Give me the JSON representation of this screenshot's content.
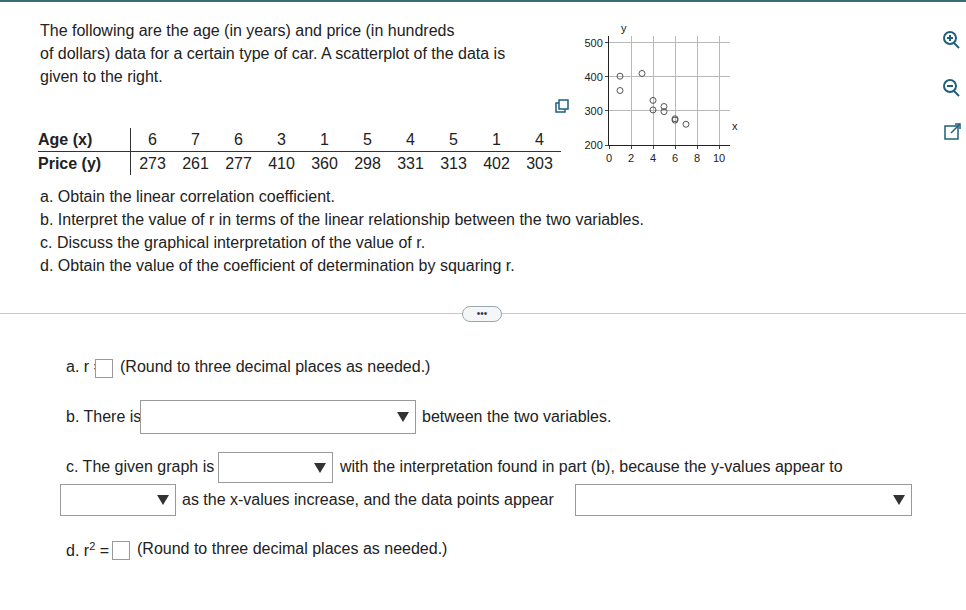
{
  "intro": [
    "The following are the age (in years) and price (in hundreds",
    "of dollars) data for a certain type of car. A scatterplot of the data is",
    "given to the right."
  ],
  "table": {
    "rows": [
      {
        "label": "Age (x)",
        "values": [
          6,
          7,
          6,
          3,
          1,
          5,
          4,
          5,
          1,
          4
        ]
      },
      {
        "label": "Price (y)",
        "values": [
          273,
          261,
          277,
          410,
          360,
          298,
          331,
          313,
          402,
          303
        ]
      }
    ]
  },
  "chart_data": {
    "type": "scatter",
    "x_label": "x",
    "y_label": "y",
    "x": [
      6,
      7,
      6,
      3,
      1,
      5,
      4,
      5,
      1,
      4
    ],
    "values": [
      273,
      261,
      277,
      410,
      360,
      298,
      331,
      313,
      402,
      303
    ],
    "xlim": [
      0,
      11
    ],
    "ylim": [
      200,
      520
    ],
    "xticks": [
      0,
      2,
      4,
      6,
      8,
      10
    ],
    "yticks": [
      200,
      300,
      400,
      500
    ],
    "grid": true,
    "marker": "circle-open",
    "color": "#555555"
  },
  "questions": [
    "a. Obtain the linear correlation coefficient.",
    "b. Interpret the value of r in terms of the linear relationship between the two variables.",
    "c. Discuss the graphical interpretation of the value of r.",
    "d. Obtain the value of the coefficient of determination by squaring r."
  ],
  "more_button": "•••",
  "answers": {
    "a": {
      "before": "a. r =",
      "note": "(Round to three decimal places as needed.)"
    },
    "b": {
      "before": "b. There is",
      "after": "between the two variables."
    },
    "c": {
      "before": "c. The given graph is",
      "middle": "with the interpretation found in part (b), because the y-values appear to",
      "after": "as the x-values increase, and the data points appear"
    },
    "d": {
      "before": "d. r",
      "sup": "2",
      "after": "=",
      "note": "(Round to three decimal places as needed.)"
    }
  }
}
